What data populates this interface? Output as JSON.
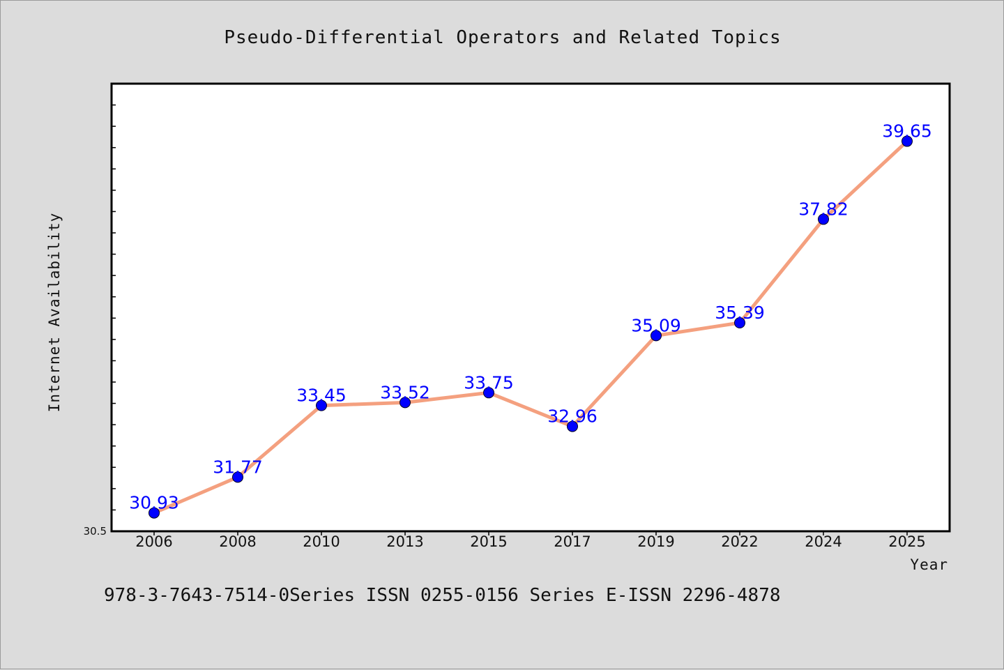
{
  "colors": {
    "line": "#f4a07f",
    "marker": "#0000ff",
    "label": "#0000ff",
    "plot_bg": "#ffffff",
    "page_bg": "#dcdcdc"
  },
  "chart_data": {
    "type": "line",
    "title": "Pseudo-Differential Operators and Related Topics",
    "xlabel": "Year",
    "ylabel": "Internet Availability",
    "categories": [
      "2006",
      "2008",
      "2010",
      "2013",
      "2015",
      "2017",
      "2019",
      "2022",
      "2024",
      "2025"
    ],
    "series": [
      {
        "values": [
          30.93,
          31.77,
          33.45,
          33.52,
          33.75,
          32.96,
          35.09,
          35.39,
          37.82,
          39.65
        ],
        "labels": [
          "30.93",
          "31.77",
          "33.45",
          "33.52",
          "33.75",
          "32.96",
          "35.09",
          "35.39",
          "37.82",
          "39.65"
        ]
      }
    ],
    "ylim": [
      30.5,
      41.0
    ],
    "yticks_labeled": [
      "30.5"
    ],
    "grid": false,
    "legend": "none"
  },
  "footer": {
    "text": "978-3-7643-7514-0Series ISSN 0255-0156 Series E-ISSN 2296-4878"
  }
}
